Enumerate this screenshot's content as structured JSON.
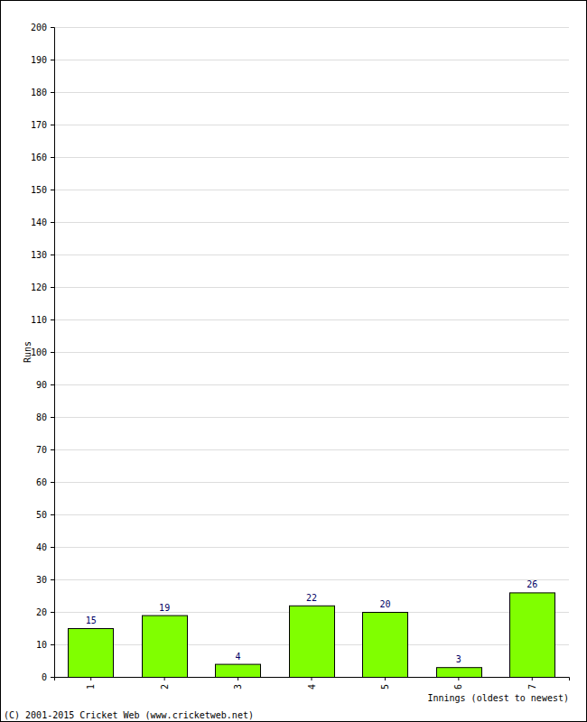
{
  "chart_data": {
    "type": "bar",
    "categories": [
      "1",
      "2",
      "3",
      "4",
      "5",
      "6",
      "7"
    ],
    "values": [
      15,
      19,
      4,
      22,
      20,
      3,
      26
    ],
    "color": "#80ff00",
    "y_label": "Runs",
    "x_label": "Innings (oldest to newest)",
    "annotations": [
      "(C) 2001-2015 Cricket Web (www.cricketweb.net)"
    ],
    "ylim": [
      0,
      200
    ],
    "yticks": [
      0,
      10,
      20,
      30,
      40,
      50,
      60,
      70,
      80,
      90,
      100,
      110,
      120,
      130,
      140,
      150,
      160,
      170,
      180,
      190,
      200
    ],
    "grid": true,
    "data_labels": true
  }
}
